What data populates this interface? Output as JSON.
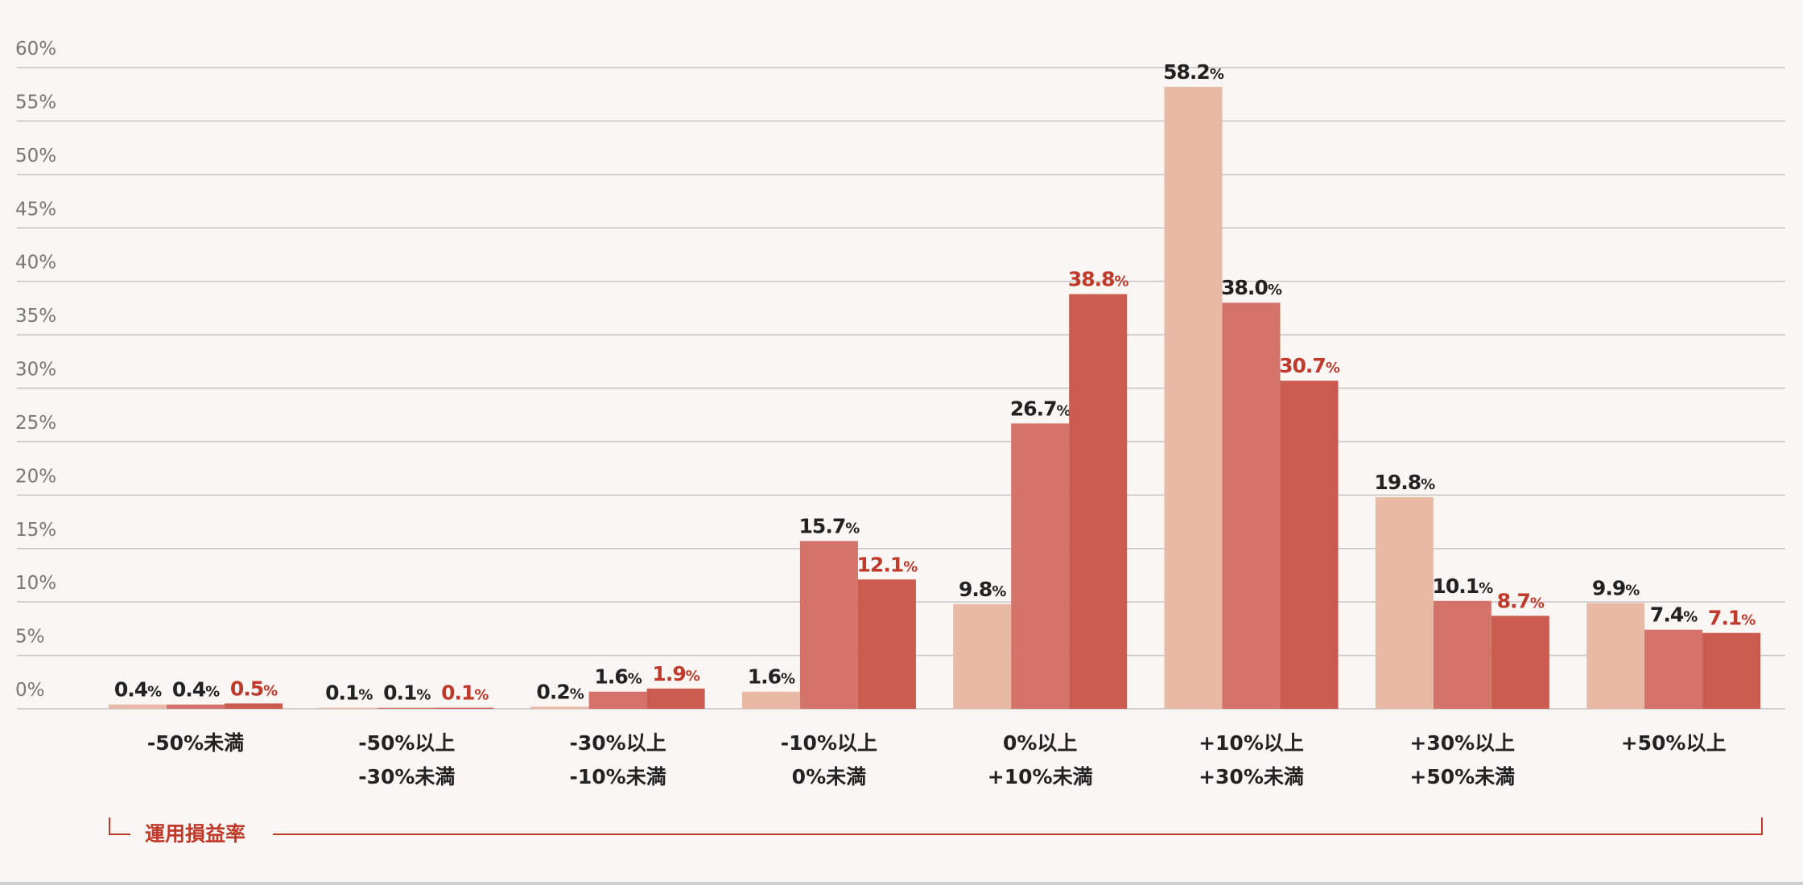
{
  "chart_data": {
    "type": "bar",
    "xlabel": "運用損益率",
    "categories": [
      "-50%未満",
      "-50%以上\n-30%未満",
      "-30%以上\n-10%未満",
      "-10%以上\n0%未満",
      "0%以上\n+10%未満",
      "+10%以上\n+30%未満",
      "+30%以上\n+50%未満",
      "+50%以上"
    ],
    "series": [
      {
        "color": "#e8b9a4",
        "label_color": "#222222",
        "values": [
          0.4,
          0.1,
          0.2,
          1.6,
          9.8,
          58.2,
          19.8,
          9.9
        ],
        "value_labels": [
          "0.4%",
          "0.1%",
          "0.2%",
          "1.6%",
          "9.8%",
          "58.2%",
          "19.8%",
          "9.9%"
        ]
      },
      {
        "color": "#d4736a",
        "label_color": "#222222",
        "values": [
          0.4,
          0.1,
          1.6,
          15.7,
          26.7,
          38.0,
          10.1,
          7.4
        ],
        "value_labels": [
          "0.4%",
          "0.1%",
          "1.6%",
          "15.7%",
          "26.7%",
          "38.0%",
          "10.1%",
          "7.4%"
        ]
      },
      {
        "color": "#cb5a4f",
        "label_color": "#c0392b",
        "values": [
          0.5,
          0.1,
          1.9,
          12.1,
          38.8,
          30.7,
          8.7,
          7.1
        ],
        "value_labels": [
          "0.5%",
          "0.1%",
          "1.9%",
          "12.1%",
          "38.8%",
          "30.7%",
          "8.7%",
          "7.1%"
        ]
      }
    ],
    "ylim": [
      0,
      60
    ],
    "yticks": [
      {
        "value": 0,
        "label": "0%"
      },
      {
        "value": 5,
        "label": "5%"
      },
      {
        "value": 10,
        "label": "10%"
      },
      {
        "value": 15,
        "label": "15%"
      },
      {
        "value": 20,
        "label": "20%"
      },
      {
        "value": 25,
        "label": "25%"
      },
      {
        "value": 30,
        "label": "30%"
      },
      {
        "value": 35,
        "label": "35%"
      },
      {
        "value": 40,
        "label": "40%"
      },
      {
        "value": 45,
        "label": "45%"
      },
      {
        "value": 50,
        "label": "50%"
      },
      {
        "value": 55,
        "label": "55%"
      },
      {
        "value": 60,
        "label": "60%"
      }
    ],
    "grid": true
  }
}
